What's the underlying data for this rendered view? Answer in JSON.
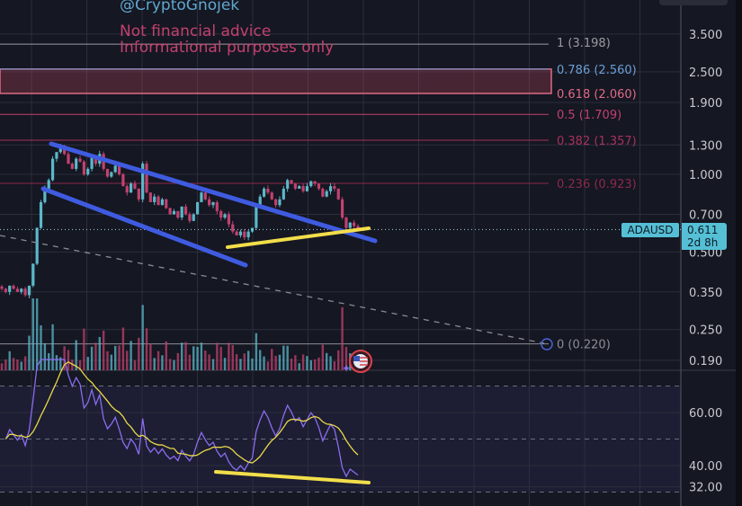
{
  "watermark": {
    "handle": "@CryptoGnojek",
    "line1": "Not financial advice",
    "line2": "Informational purposes only"
  },
  "symbol": {
    "name": "ADAUSD",
    "price": "0.611",
    "countdown": "2d 8h",
    "color": "#55bfd6"
  },
  "chart_data": [
    {
      "type": "candlestick",
      "scale": "log",
      "y_ticks": [
        "3.500",
        "2.500",
        "1.900",
        "1.300",
        "1.000",
        "0.700",
        "0.500",
        "0.350",
        "0.250",
        "0.190"
      ],
      "y_tick_values": [
        3.5,
        2.5,
        1.9,
        1.3,
        1.0,
        0.7,
        0.5,
        0.35,
        0.25,
        0.19
      ],
      "grid": true,
      "closes": [
        0.36,
        0.35,
        0.37,
        0.36,
        0.35,
        0.36,
        0.34,
        0.37,
        0.45,
        0.62,
        0.78,
        0.88,
        0.95,
        1.15,
        1.22,
        1.28,
        1.2,
        1.1,
        1.05,
        1.15,
        1.12,
        1.0,
        1.05,
        1.18,
        1.1,
        1.2,
        1.05,
        0.98,
        1.02,
        1.08,
        1.0,
        0.9,
        0.85,
        0.92,
        0.88,
        0.8,
        1.1,
        0.85,
        0.78,
        0.82,
        0.76,
        0.8,
        0.74,
        0.7,
        0.72,
        0.68,
        0.75,
        0.7,
        0.66,
        0.7,
        0.78,
        0.85,
        0.8,
        0.76,
        0.78,
        0.72,
        0.68,
        0.7,
        0.64,
        0.6,
        0.58,
        0.6,
        0.57,
        0.6,
        0.62,
        0.75,
        0.82,
        0.88,
        0.85,
        0.8,
        0.76,
        0.8,
        0.88,
        0.95,
        0.92,
        0.88,
        0.9,
        0.86,
        0.9,
        0.94,
        0.92,
        0.88,
        0.82,
        0.86,
        0.9,
        0.88,
        0.8,
        0.68,
        0.62,
        0.65,
        0.63,
        0.611
      ],
      "up_color": "#5bb8c9",
      "down_color": "#c2416e",
      "fib_levels": [
        {
          "label": "1 (3.198)",
          "price": 3.198,
          "color": "#9a9ba3"
        },
        {
          "label": "0.786 (2.560)",
          "price": 2.56,
          "color": "#6b9fd6"
        },
        {
          "label": "0.618 (2.060)",
          "price": 2.06,
          "color": "#e06a86"
        },
        {
          "label": "0.5 (1.709)",
          "price": 1.709,
          "color": "#c2416e"
        },
        {
          "label": "0.382 (1.357)",
          "price": 1.357,
          "color": "#a8325c"
        },
        {
          "label": "0.236 (0.923)",
          "price": 0.923,
          "color": "#8a2a4c"
        },
        {
          "label": "0 (0.220)",
          "price": 0.22,
          "color": "#8c8d95"
        }
      ],
      "current_price": 0.611
    },
    {
      "type": "line",
      "indicator": "RSI",
      "y_ticks": [
        "60.00",
        "40.00",
        "32.00"
      ],
      "y_tick_values": [
        60,
        40,
        32
      ],
      "bands": [
        70,
        50,
        30
      ],
      "line_color": "#8a6cf0",
      "ma_color": "#e8d84a"
    }
  ]
}
